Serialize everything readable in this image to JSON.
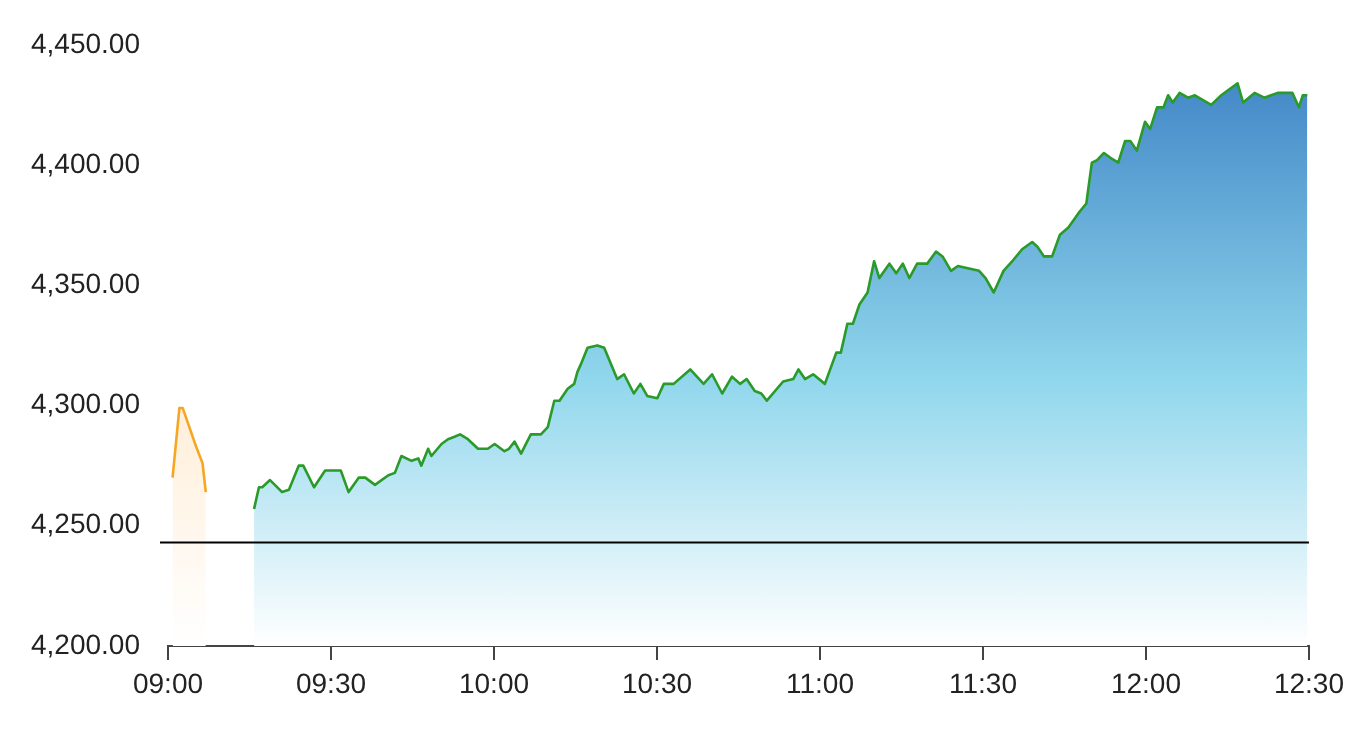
{
  "chart_data": {
    "type": "area",
    "marker": "none",
    "legend": false,
    "xlim": [
      9,
      12.5
    ],
    "xticks": [
      {
        "value": 9,
        "label": "09:00"
      },
      {
        "value": 9.5,
        "label": "09:30"
      },
      {
        "value": 10,
        "label": "10:00"
      },
      {
        "value": 10.5,
        "label": "10:30"
      },
      {
        "value": 11,
        "label": "11:00"
      },
      {
        "value": 11.5,
        "label": "11:30"
      },
      {
        "value": 12,
        "label": "12:00"
      },
      {
        "value": 12.5,
        "label": "12:30"
      }
    ],
    "ylim": [
      4200,
      4450
    ],
    "yticks": [
      {
        "value": 4200,
        "label": "4,200.00"
      },
      {
        "value": 4250,
        "label": "4,250.00"
      },
      {
        "value": 4300,
        "label": "4,300.00"
      },
      {
        "value": 4350,
        "label": "4,350.00"
      },
      {
        "value": 4400,
        "label": "4,400.00"
      },
      {
        "value": 4450,
        "label": "4,450.00"
      }
    ],
    "ref_lines": [
      {
        "axis": "y",
        "value": 4243,
        "color": "#000000"
      }
    ],
    "series": [
      {
        "color": "#f5a623",
        "x": [
          9.014,
          9.035,
          9.045,
          9.086,
          9.106,
          9.116
        ],
        "values": [
          4270,
          4299,
          4299,
          4283,
          4276,
          4264
        ]
      },
      {
        "color": "#2a9a2a",
        "x": [
          9.264,
          9.279,
          9.289,
          9.313,
          9.35,
          9.371,
          9.401,
          9.415,
          9.448,
          9.482,
          9.53,
          9.554,
          9.585,
          9.605,
          9.635,
          9.676,
          9.696,
          9.716,
          9.747,
          9.768,
          9.777,
          9.798,
          9.808,
          9.839,
          9.859,
          9.879,
          9.896,
          9.92,
          9.951,
          9.981,
          10.002,
          10.032,
          10.046,
          10.063,
          10.083,
          10.113,
          10.144,
          10.165,
          10.185,
          10.201,
          10.226,
          10.246,
          10.256,
          10.266,
          10.287,
          10.317,
          10.338,
          10.378,
          10.399,
          10.429,
          10.449,
          10.47,
          10.501,
          10.521,
          10.551,
          10.602,
          10.643,
          10.669,
          10.7,
          10.73,
          10.755,
          10.775,
          10.8,
          10.82,
          10.837,
          10.887,
          10.918,
          10.934,
          10.954,
          10.979,
          11.015,
          11.05,
          11.064,
          11.084,
          11.101,
          11.121,
          11.146,
          11.166,
          11.182,
          11.213,
          11.234,
          11.254,
          11.274,
          11.298,
          11.329,
          11.356,
          11.376,
          11.402,
          11.423,
          11.457,
          11.488,
          11.508,
          11.533,
          11.563,
          11.59,
          11.62,
          11.651,
          11.667,
          11.687,
          11.712,
          11.736,
          11.762,
          11.793,
          11.817,
          11.834,
          11.85,
          11.871,
          11.891,
          11.915,
          11.936,
          11.952,
          11.972,
          11.997,
          12.013,
          12.034,
          12.054,
          12.068,
          12.082,
          12.103,
          12.129,
          12.15,
          12.2,
          12.231,
          12.281,
          12.298,
          12.333,
          12.363,
          12.404,
          12.449,
          12.469,
          12.481,
          12.495
        ],
        "values": [
          4257,
          4266,
          4266,
          4269,
          4264,
          4265,
          4275,
          4275,
          4266,
          4273,
          4273,
          4264,
          4270,
          4270,
          4267,
          4271,
          4272,
          4279,
          4277,
          4278,
          4275,
          4282,
          4279,
          4284,
          4286,
          4287,
          4288,
          4286,
          4282,
          4282,
          4284,
          4281,
          4282,
          4285,
          4280,
          4288,
          4288,
          4291,
          4302,
          4302,
          4307,
          4309,
          4314,
          4317,
          4324,
          4325,
          4324,
          4311,
          4313,
          4305,
          4309,
          4304,
          4303,
          4309,
          4309,
          4315,
          4309,
          4313,
          4305,
          4312,
          4309,
          4311,
          4306,
          4305,
          4302,
          4310,
          4311,
          4315,
          4311,
          4313,
          4309,
          4322,
          4322,
          4334,
          4334,
          4342,
          4347,
          4360,
          4353,
          4359,
          4355,
          4359,
          4353,
          4359,
          4359,
          4364,
          4362,
          4356,
          4358,
          4357,
          4356,
          4353,
          4347,
          4356,
          4360,
          4365,
          4368,
          4366,
          4362,
          4362,
          4371,
          4374,
          4380,
          4384,
          4401,
          4402,
          4405,
          4403,
          4401,
          4410,
          4410,
          4406,
          4418,
          4415,
          4424,
          4424,
          4429,
          4426,
          4430,
          4428,
          4429,
          4425,
          4429,
          4434,
          4426,
          4430,
          4428,
          4430,
          4430,
          4424,
          4429,
          4429
        ]
      }
    ]
  }
}
